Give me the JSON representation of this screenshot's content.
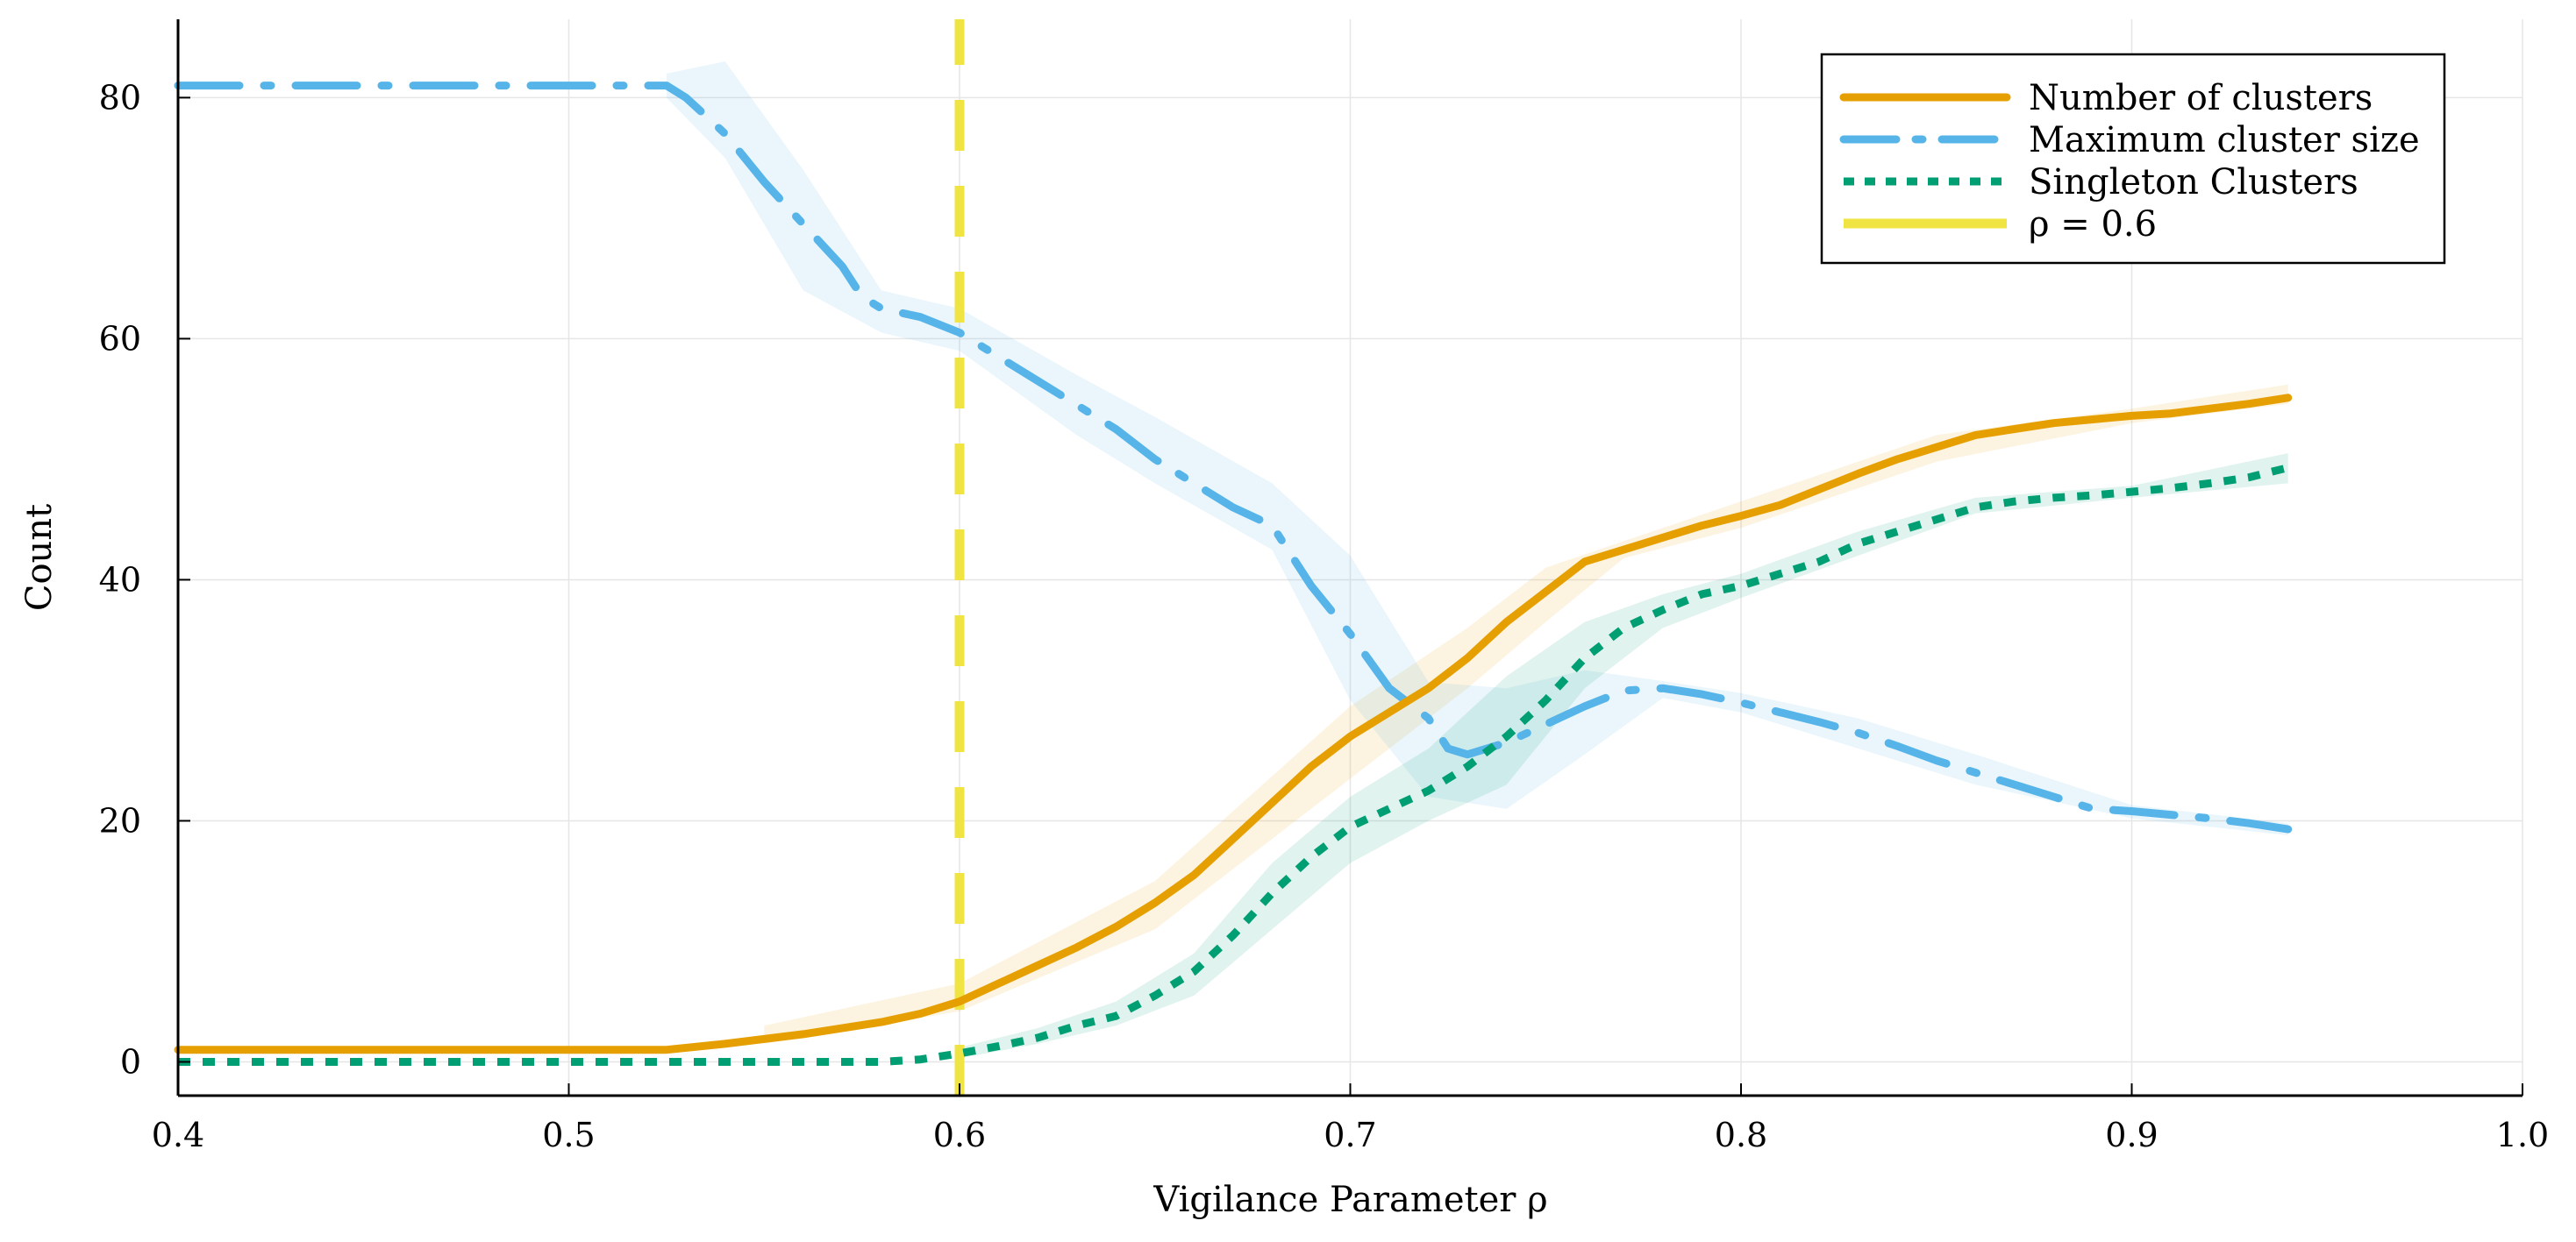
{
  "chart_data": {
    "type": "line",
    "title": "",
    "xlabel": "Vigilance Parameter ρ",
    "ylabel": "Count",
    "xlim": [
      0.4,
      1.0
    ],
    "ylim": [
      -2.8,
      86.5
    ],
    "xticks": [
      0.4,
      0.5,
      0.6,
      0.7,
      0.8,
      0.9,
      1.0
    ],
    "xtick_labels": [
      "0.4",
      "0.5",
      "0.6",
      "0.7",
      "0.8",
      "0.9",
      "1.0"
    ],
    "yticks": [
      0,
      20,
      40,
      60,
      80
    ],
    "ytick_labels": [
      "0",
      "20",
      "40",
      "60",
      "80"
    ],
    "grid": true,
    "legend_position": "top-right",
    "series": [
      {
        "name": "Number of clusters",
        "color": "#e69f00",
        "style": "solid",
        "x": [
          0.4,
          0.45,
          0.5,
          0.525,
          0.54,
          0.56,
          0.58,
          0.59,
          0.6,
          0.61,
          0.62,
          0.63,
          0.64,
          0.65,
          0.66,
          0.67,
          0.68,
          0.69,
          0.7,
          0.71,
          0.72,
          0.73,
          0.74,
          0.75,
          0.76,
          0.765,
          0.77,
          0.78,
          0.79,
          0.8,
          0.81,
          0.82,
          0.83,
          0.84,
          0.85,
          0.86,
          0.87,
          0.88,
          0.89,
          0.9,
          0.91,
          0.92,
          0.93,
          0.94
        ],
        "values": [
          1.0,
          1.0,
          1.0,
          1.0,
          1.5,
          2.3,
          3.3,
          4.0,
          5.0,
          6.5,
          8.0,
          9.5,
          11.2,
          13.2,
          15.5,
          18.5,
          21.5,
          24.5,
          27.0,
          29.0,
          31.0,
          33.5,
          36.5,
          39.0,
          41.5,
          42.0,
          42.5,
          43.5,
          44.5,
          45.3,
          46.2,
          47.5,
          48.8,
          50.0,
          51.0,
          52.0,
          52.5,
          53.0,
          53.3,
          53.6,
          53.8,
          54.2,
          54.6,
          55.1
        ]
      },
      {
        "name": "Maximum cluster size",
        "color": "#56b4e9",
        "style": "dashdot",
        "x": [
          0.4,
          0.45,
          0.5,
          0.525,
          0.53,
          0.54,
          0.55,
          0.56,
          0.57,
          0.575,
          0.58,
          0.59,
          0.6,
          0.61,
          0.62,
          0.63,
          0.64,
          0.65,
          0.66,
          0.67,
          0.68,
          0.69,
          0.7,
          0.71,
          0.72,
          0.725,
          0.73,
          0.74,
          0.75,
          0.76,
          0.77,
          0.78,
          0.79,
          0.8,
          0.81,
          0.82,
          0.83,
          0.84,
          0.85,
          0.86,
          0.87,
          0.88,
          0.89,
          0.9,
          0.91,
          0.92,
          0.93,
          0.94
        ],
        "values": [
          81.0,
          81.0,
          81.0,
          81.0,
          80.0,
          77.0,
          73.0,
          69.5,
          66.0,
          63.5,
          62.5,
          61.8,
          60.5,
          58.5,
          56.5,
          54.5,
          52.5,
          50.0,
          48.0,
          46.0,
          44.5,
          39.5,
          35.5,
          31.0,
          28.5,
          26.0,
          25.5,
          26.5,
          28.0,
          29.5,
          30.8,
          31.0,
          30.5,
          29.8,
          29.0,
          28.2,
          27.3,
          26.2,
          25.0,
          24.0,
          23.0,
          22.0,
          21.0,
          20.8,
          20.5,
          20.2,
          19.8,
          19.3
        ]
      },
      {
        "name": "Singleton Clusters",
        "color": "#009e73",
        "style": "dotted",
        "x": [
          0.4,
          0.45,
          0.5,
          0.55,
          0.58,
          0.59,
          0.6,
          0.61,
          0.62,
          0.63,
          0.64,
          0.65,
          0.66,
          0.67,
          0.68,
          0.69,
          0.7,
          0.71,
          0.72,
          0.73,
          0.74,
          0.75,
          0.76,
          0.77,
          0.78,
          0.79,
          0.8,
          0.81,
          0.82,
          0.83,
          0.84,
          0.85,
          0.86,
          0.87,
          0.88,
          0.89,
          0.9,
          0.91,
          0.92,
          0.93,
          0.94
        ],
        "values": [
          0.0,
          0.0,
          0.0,
          0.0,
          0.0,
          0.2,
          0.7,
          1.3,
          2.0,
          3.0,
          3.8,
          5.5,
          7.5,
          10.5,
          14.0,
          17.0,
          19.5,
          21.0,
          22.5,
          24.5,
          27.0,
          30.0,
          33.5,
          36.0,
          37.5,
          38.8,
          39.5,
          40.5,
          41.5,
          43.0,
          44.0,
          45.0,
          46.0,
          46.5,
          46.8,
          47.0,
          47.3,
          47.6,
          48.0,
          48.5,
          49.3
        ]
      },
      {
        "name": "ρ = 0.6",
        "color": "#f0e442",
        "style": "dashed",
        "x": [
          0.6,
          0.6
        ],
        "values": [
          -2.8,
          86.5
        ]
      }
    ],
    "bands": [
      {
        "series": "Number of clusters",
        "color": "#e69f00",
        "x": [
          0.55,
          0.6,
          0.65,
          0.7,
          0.73,
          0.75,
          0.77,
          0.8,
          0.85,
          0.9,
          0.94
        ],
        "lower": [
          1.5,
          4.2,
          11.0,
          23.5,
          31.0,
          36.5,
          41.8,
          44.3,
          49.8,
          53.0,
          54.6
        ],
        "upper": [
          3.0,
          6.5,
          15.0,
          29.5,
          36.0,
          41.0,
          43.2,
          46.5,
          52.0,
          54.2,
          56.2
        ]
      },
      {
        "series": "Maximum cluster size",
        "color": "#56b4e9",
        "x": [
          0.525,
          0.54,
          0.56,
          0.58,
          0.6,
          0.63,
          0.65,
          0.68,
          0.7,
          0.72,
          0.74,
          0.76,
          0.78,
          0.8,
          0.83,
          0.86,
          0.9,
          0.94
        ],
        "lower": [
          80.0,
          75.0,
          64.0,
          60.5,
          59.0,
          52.0,
          48.0,
          42.5,
          30.0,
          22.0,
          21.0,
          25.5,
          30.2,
          29.0,
          26.0,
          23.0,
          20.2,
          18.8
        ],
        "upper": [
          82.0,
          83.0,
          74.0,
          64.0,
          62.5,
          57.0,
          53.5,
          48.0,
          42.0,
          31.5,
          31.0,
          32.5,
          31.6,
          30.6,
          28.5,
          25.5,
          21.3,
          19.8
        ]
      },
      {
        "series": "Singleton Clusters",
        "color": "#009e73",
        "x": [
          0.6,
          0.62,
          0.64,
          0.66,
          0.68,
          0.7,
          0.72,
          0.74,
          0.76,
          0.78,
          0.8,
          0.83,
          0.86,
          0.9,
          0.94
        ],
        "lower": [
          0.3,
          1.5,
          3.0,
          5.5,
          11.0,
          16.5,
          20.0,
          23.0,
          31.0,
          36.0,
          38.5,
          42.0,
          45.5,
          46.8,
          48.0
        ],
        "upper": [
          1.2,
          2.8,
          5.0,
          9.0,
          16.5,
          22.0,
          26.0,
          32.0,
          36.5,
          38.8,
          40.5,
          44.0,
          46.8,
          47.8,
          50.5
        ]
      }
    ]
  }
}
